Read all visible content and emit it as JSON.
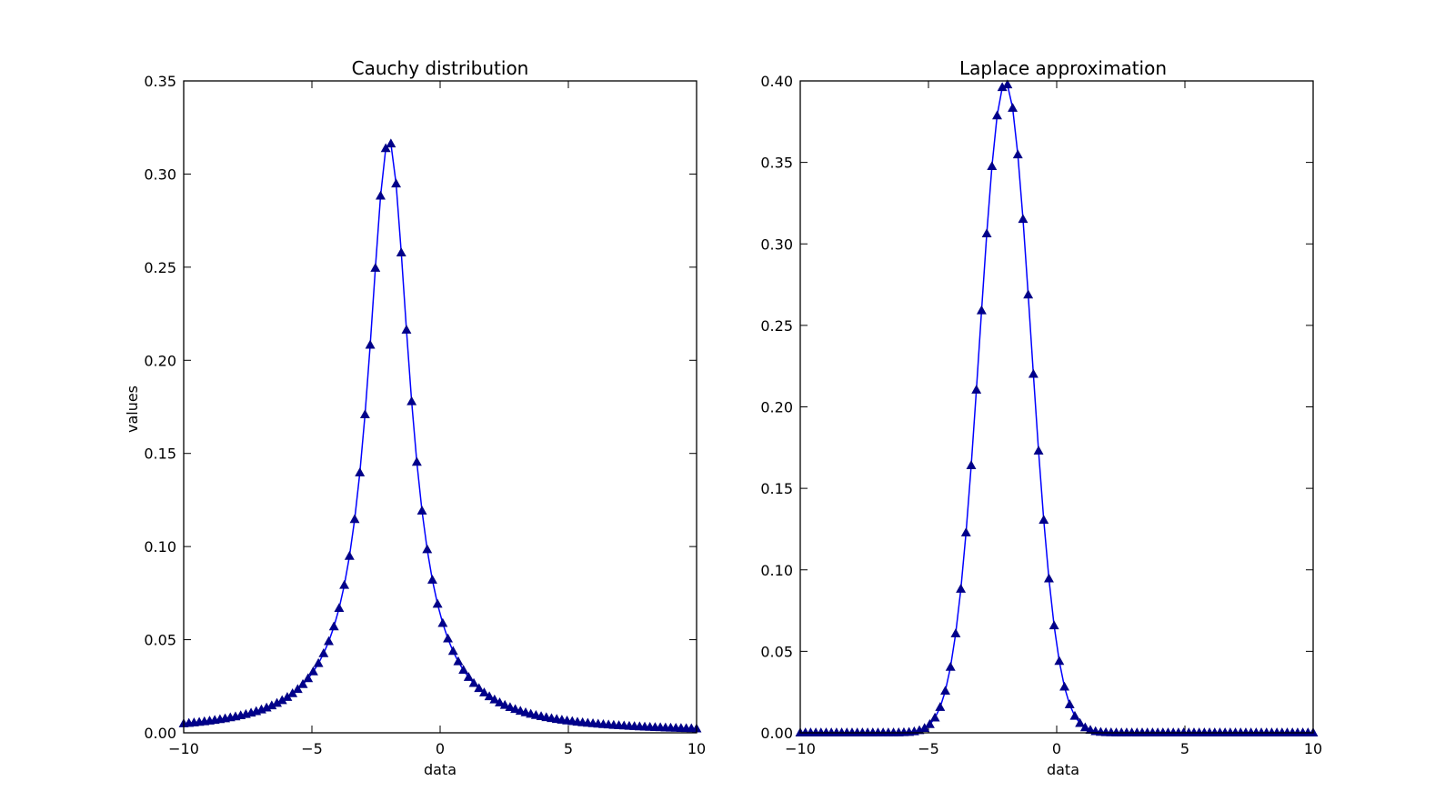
{
  "chart_data": [
    {
      "type": "line",
      "title": "Cauchy distribution",
      "xlabel": "data",
      "ylabel": "values",
      "xlim": [
        -10,
        10
      ],
      "ylim": [
        0,
        0.35
      ],
      "x_ticks": [
        "−10",
        "−5",
        "0",
        "5",
        "10"
      ],
      "y_ticks": [
        "0.00",
        "0.05",
        "0.10",
        "0.15",
        "0.20",
        "0.25",
        "0.30",
        "0.35"
      ],
      "series": [
        {
          "distribution": "cauchy",
          "location": -2,
          "scale": 1,
          "x_start": -10,
          "x_end": 10,
          "n_points": 100,
          "color": "#0000ff",
          "marker": "triangle"
        }
      ],
      "grid": false,
      "legend": "none"
    },
    {
      "type": "line",
      "title": "Laplace approximation",
      "xlabel": "data",
      "ylabel": "",
      "xlim": [
        -10,
        10
      ],
      "ylim": [
        0,
        0.4
      ],
      "x_ticks": [
        "−10",
        "−5",
        "0",
        "5",
        "10"
      ],
      "y_ticks": [
        "0.00",
        "0.05",
        "0.10",
        "0.15",
        "0.20",
        "0.25",
        "0.30",
        "0.35",
        "0.40"
      ],
      "series": [
        {
          "distribution": "normal",
          "mean": -2,
          "std": 1,
          "x_start": -10,
          "x_end": 10,
          "n_points": 100,
          "color": "#0000ff",
          "marker": "triangle"
        }
      ],
      "grid": false,
      "legend": "none"
    }
  ]
}
